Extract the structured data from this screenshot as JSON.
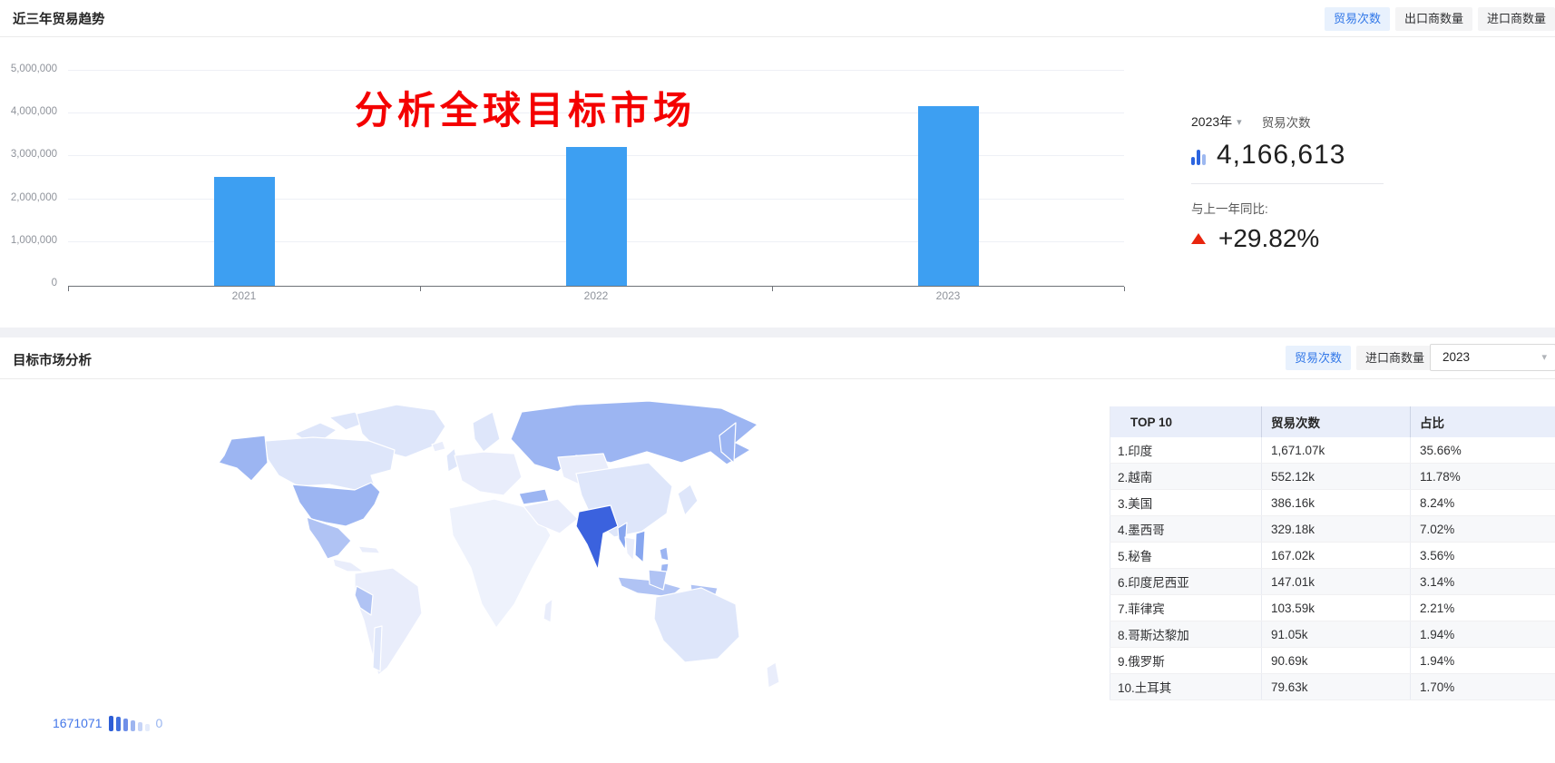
{
  "annotation": {
    "text": "分析全球目标市场",
    "color": "#f40000"
  },
  "trend_section": {
    "title": "近三年贸易趋势",
    "toggles": [
      {
        "label": "贸易次数",
        "active": true
      },
      {
        "label": "出口商数量",
        "active": false
      },
      {
        "label": "进口商数量",
        "active": false
      }
    ]
  },
  "stats_panel": {
    "year": "2023年",
    "chevron_icon": "chevron-down-icon",
    "metric": "贸易次数",
    "value_icon": "bar-chart-icon",
    "value": "4,166,613",
    "yoy_label": "与上一年同比:",
    "yoy_change": "+29.82%",
    "direction": "up",
    "up_color": "#e8250e",
    "icon_colors": [
      "#2c64df",
      "#2c64df",
      "#9db8f0"
    ]
  },
  "market_section": {
    "title": "目标市场分析",
    "toggles": [
      {
        "label": "贸易次数",
        "active": true
      },
      {
        "label": "进口商数量",
        "active": false
      }
    ],
    "year_select": {
      "value": "2023"
    },
    "legend": {
      "max_label": "1671071",
      "min_label": "0",
      "bars": [
        {
          "h": 17,
          "color": "#2e5ed6"
        },
        {
          "h": 16,
          "color": "#4170de"
        },
        {
          "h": 14,
          "color": "#6f8fe8"
        },
        {
          "h": 12,
          "color": "#9db5f0"
        },
        {
          "h": 10,
          "color": "#c6d4f7"
        },
        {
          "h": 8,
          "color": "#e4ebfb"
        }
      ]
    }
  },
  "chart_data": [
    {
      "type": "bar",
      "title": "近三年贸易趋势",
      "series_name": "贸易次数",
      "categories": [
        "2021",
        "2022",
        "2023"
      ],
      "values": [
        2530000,
        3210000,
        4166613
      ],
      "ylim": [
        0,
        5000000
      ],
      "y_tick_labels": [
        "5,000,000",
        "4,000,000",
        "3,000,000",
        "2,000,000",
        "1,000,000",
        "0"
      ],
      "bar_color": "#3d9ff2",
      "grid": true,
      "legend_position": "none"
    },
    {
      "type": "table",
      "title": "目标市场分析 TOP 10",
      "columns": [
        "TOP 10",
        "贸易次数",
        "占比"
      ],
      "rows": [
        [
          "1.印度",
          "1,671.07k",
          "35.66%"
        ],
        [
          "2.越南",
          "552.12k",
          "11.78%"
        ],
        [
          "3.美国",
          "386.16k",
          "8.24%"
        ],
        [
          "4.墨西哥",
          "329.18k",
          "7.02%"
        ],
        [
          "5.秘鲁",
          "167.02k",
          "3.56%"
        ],
        [
          "6.印度尼西亚",
          "147.01k",
          "3.14%"
        ],
        [
          "7.菲律宾",
          "103.59k",
          "2.21%"
        ],
        [
          "8.哥斯达黎加",
          "91.05k",
          "1.94%"
        ],
        [
          "9.俄罗斯",
          "90.69k",
          "1.94%"
        ],
        [
          "10.土耳其",
          "79.63k",
          "1.70%"
        ]
      ],
      "map_value_range": [
        0,
        1671071
      ]
    }
  ],
  "map_colors": {
    "strongest": "#3b62de",
    "strong": "#87a6ef",
    "medium": "#9cb5f2",
    "medium_light": "#b0c3f4",
    "light": "#dee6fa",
    "lighter": "#e9edfb",
    "lightest": "#eef2fc"
  }
}
